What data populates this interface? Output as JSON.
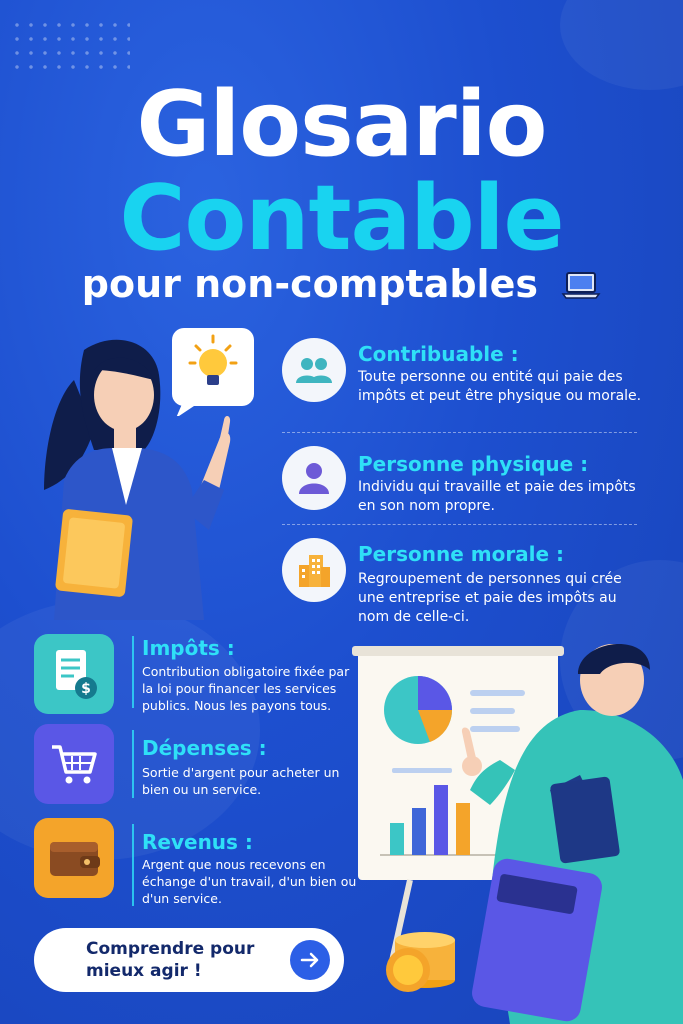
{
  "header": {
    "title_line1": "Glosario",
    "title_line2": "Contable",
    "subtitle": "pour non-comptables"
  },
  "terms": [
    {
      "title": "Contribuable :",
      "description": "Toute personne ou entité qui paie des impôts et peut être physique ou morale.",
      "icon": "people-icon"
    },
    {
      "title": "Personne physique :",
      "description": "Individu qui travaille et paie des impôts en son nom propre.",
      "icon": "person-icon"
    },
    {
      "title": "Personne morale :",
      "description": "Regroupement de personnes qui crée une entreprise et paie des impôts au nom de celle-ci.",
      "icon": "building-icon"
    }
  ],
  "left_terms": [
    {
      "title": "Impôts :",
      "description": "Contribution obligatoire fixée par la loi pour financer les services publics. Nous les payons tous.",
      "icon": "tax-document-icon"
    },
    {
      "title": "Dépenses :",
      "description": "Sortie d'argent pour acheter un bien ou un service.",
      "icon": "shopping-cart-icon"
    },
    {
      "title": "Revenus :",
      "description": "Argent que nous recevons en échange d'un travail, d'un bien ou d'un service.",
      "icon": "wallet-icon"
    }
  ],
  "cta": {
    "label": "Comprendre pour mieux agir !"
  },
  "colors": {
    "background": "#1d4fcf",
    "accent": "#19d3f0",
    "white": "#ffffff",
    "dark_text": "#13296b"
  }
}
